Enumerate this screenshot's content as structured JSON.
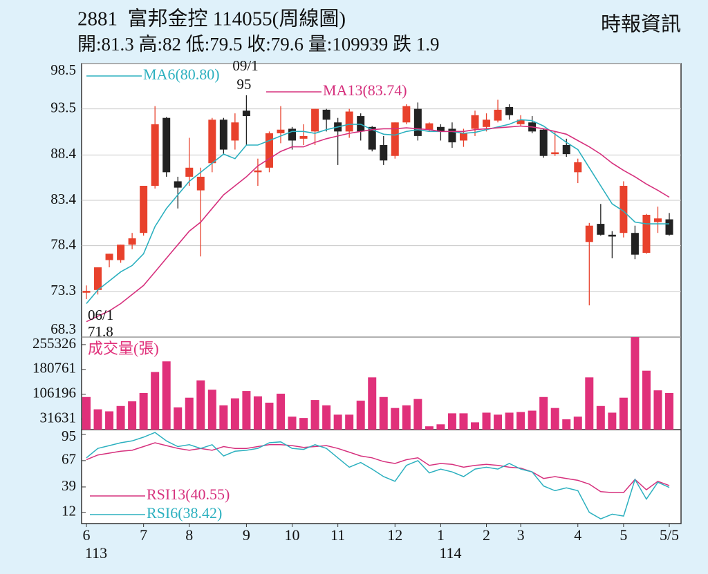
{
  "header": {
    "title": "2881  富邦金控 114055(周線圖)",
    "quote": "開:81.3 高:82 低:79.5 收:79.6 量:109939 跌 1.9",
    "source": "時報資訊"
  },
  "chart_data": [
    {
      "type": "candlestick",
      "open": [
        73.2,
        73.5,
        76.8,
        76.8,
        78.5,
        79.8,
        85,
        92.5,
        85.5,
        86,
        84.5,
        87.5,
        92.3,
        90,
        93.3,
        86.5,
        87,
        90.8,
        91.3,
        90.2,
        91,
        93.4,
        92,
        91,
        92.7,
        91.5,
        89.5,
        88.3,
        92,
        93.5,
        91.2,
        91.5,
        91.3,
        90,
        91.3,
        91.5,
        92.2,
        93.7,
        91.8,
        92,
        91.2,
        88.5,
        89.5,
        86.5,
        78.8,
        80.8,
        79.6,
        79.8,
        79.8,
        77.6,
        81,
        81.3
      ],
      "high": [
        74,
        76,
        77.5,
        78.5,
        79.8,
        85,
        93.8,
        92.6,
        86,
        90.3,
        87,
        92.5,
        92.5,
        93,
        95,
        88,
        91,
        93.8,
        91.5,
        91.8,
        93.5,
        93.5,
        92.5,
        93.5,
        93,
        91.6,
        90.5,
        92,
        94,
        94.2,
        92,
        91.8,
        92,
        91.3,
        93.3,
        93,
        94.5,
        94,
        92.8,
        92.7,
        91.3,
        91,
        90.2,
        88,
        80.9,
        83,
        80,
        85.5,
        80.6,
        81.9,
        82.7,
        82
      ],
      "low": [
        72.5,
        73,
        76,
        76.5,
        78,
        79.5,
        84.7,
        86,
        82.5,
        85,
        77.2,
        86.5,
        88.5,
        89,
        89.5,
        85,
        86.5,
        89.7,
        89,
        89.5,
        89.5,
        91,
        87.3,
        90.3,
        90,
        88.8,
        87.3,
        88,
        91.8,
        90,
        91,
        90,
        89.2,
        89.3,
        90.5,
        91,
        92,
        92.3,
        91.6,
        90.8,
        88.1,
        88.3,
        88.2,
        85.3,
        71.8,
        79.5,
        77,
        79.3,
        76.9,
        77.5,
        79.8,
        79.5
      ],
      "close": [
        73.4,
        76,
        77.5,
        78.5,
        79.2,
        85,
        91.8,
        86.5,
        84.8,
        87,
        86,
        92.3,
        89,
        92,
        92.7,
        86.7,
        90.8,
        91.2,
        90,
        90.5,
        93.5,
        92.3,
        91,
        93.2,
        91,
        89,
        87.8,
        92,
        93.8,
        90.5,
        91.9,
        91,
        89.8,
        90.8,
        92.8,
        92.3,
        93.4,
        92.8,
        92.3,
        91,
        88.3,
        88.7,
        88.5,
        87.6,
        80.6,
        79.6,
        79.4,
        85,
        77.4,
        81.8,
        81.4,
        79.6
      ],
      "up_color": "#e8412c",
      "down_color": "#222222",
      "series": [
        {
          "name": "MA6(80.80)",
          "color": "#2bb0bf",
          "values": [
            72,
            73.5,
            74.5,
            75.5,
            76.2,
            77.5,
            80.5,
            82.5,
            84,
            85.5,
            86.5,
            87.5,
            88.5,
            88,
            89.5,
            89.5,
            90,
            90.5,
            91,
            91,
            90.8,
            91.2,
            91.5,
            91.8,
            91.8,
            91.2,
            90.7,
            90.6,
            91,
            91.2,
            91,
            91,
            91,
            90.8,
            90.9,
            91.2,
            91.5,
            91.8,
            92.3,
            92.2,
            91.6,
            90.7,
            89.8,
            89,
            87,
            85,
            83,
            82.2,
            81,
            80.8,
            80.8,
            80.8
          ]
        },
        {
          "name": "MA13(83.74)",
          "color": "#d6307d",
          "values": [
            70,
            70.6,
            71.2,
            72,
            73,
            74,
            75.5,
            77,
            78.5,
            80,
            81,
            82.5,
            84,
            85,
            86,
            87.2,
            88,
            88.8,
            89.3,
            89.3,
            89.8,
            90.2,
            90.5,
            90.8,
            91,
            91.2,
            91.3,
            91.3,
            91.4,
            91.3,
            91.2,
            91,
            91,
            91,
            91.2,
            91.3,
            91.4,
            91.5,
            91.6,
            91.5,
            91.3,
            91,
            90.7,
            90,
            89.3,
            88.5,
            87.5,
            86.7,
            86,
            85.2,
            84.5,
            83.74
          ]
        }
      ],
      "ylim": [
        68.3,
        98.5
      ],
      "yticks": [
        68.3,
        73.3,
        78.4,
        83.4,
        88.4,
        93.5,
        98.5
      ],
      "grid": true,
      "annotations": [
        {
          "text": "09/1",
          "index": 14
        },
        {
          "text": "95",
          "index": 14
        },
        {
          "text": "06/1",
          "index": 0
        },
        {
          "text": "71.8",
          "index": 0
        }
      ]
    },
    {
      "type": "bar",
      "name": "成交量(張)",
      "color": "#e0307a",
      "values": [
        98000,
        61000,
        55000,
        71000,
        85000,
        110000,
        173000,
        205000,
        67000,
        96000,
        148000,
        120000,
        73000,
        94000,
        116000,
        100000,
        81000,
        108000,
        39000,
        35000,
        89000,
        73000,
        45000,
        45000,
        87000,
        157000,
        98000,
        65000,
        73000,
        92000,
        10000,
        16000,
        49000,
        49000,
        22000,
        51000,
        45000,
        51000,
        53000,
        57000,
        98000,
        65000,
        31000,
        39000,
        157000,
        71000,
        51000,
        96000,
        278000,
        177000,
        118000,
        109939
      ],
      "ylim": [
        0,
        278000
      ],
      "yticks": [
        31631,
        106196,
        180761,
        255326
      ]
    },
    {
      "type": "line",
      "series": [
        {
          "name": "RSI13(40.55)",
          "color": "#d6307d",
          "values": [
            68,
            73,
            75,
            77,
            78,
            82,
            86,
            83,
            80,
            78,
            80,
            78,
            82,
            80,
            80,
            82,
            84,
            84,
            83,
            81,
            82,
            83,
            80,
            76,
            72,
            70,
            66,
            64,
            68,
            70,
            62,
            64,
            63,
            60,
            62,
            63,
            62,
            60,
            59,
            55,
            48,
            50,
            48,
            46,
            42,
            34,
            33,
            33,
            47,
            36,
            45,
            40.55
          ]
        },
        {
          "name": "RSI6(38.42)",
          "color": "#2bb0bf",
          "values": [
            70,
            80,
            83,
            86,
            88,
            92,
            97,
            88,
            82,
            84,
            80,
            84,
            72,
            77,
            78,
            80,
            86,
            87,
            80,
            79,
            84,
            80,
            70,
            60,
            65,
            58,
            50,
            45,
            62,
            67,
            54,
            58,
            55,
            50,
            58,
            60,
            58,
            64,
            58,
            55,
            40,
            35,
            38,
            35,
            12,
            5,
            10,
            8,
            47,
            26,
            44,
            38.42
          ]
        }
      ],
      "ylim": [
        0,
        100
      ],
      "yticks": [
        12,
        39,
        67,
        95
      ],
      "xlim": [
        0,
        51
      ],
      "xticks": [
        {
          "value": 0,
          "label": "6"
        },
        {
          "value": 5,
          "label": "7"
        },
        {
          "value": 9,
          "label": "8"
        },
        {
          "value": 14,
          "label": "9"
        },
        {
          "value": 18,
          "label": "10"
        },
        {
          "value": 22,
          "label": "11"
        },
        {
          "value": 27,
          "label": "12"
        },
        {
          "value": 31,
          "label": "1"
        },
        {
          "value": 35,
          "label": "2"
        },
        {
          "value": 38,
          "label": "3"
        },
        {
          "value": 43,
          "label": "4"
        },
        {
          "value": 47,
          "label": "5"
        },
        {
          "value": 51,
          "label": "5/5"
        }
      ],
      "year_labels": [
        {
          "value": 0,
          "label": "113"
        },
        {
          "value": 31,
          "label": "114"
        }
      ]
    }
  ]
}
